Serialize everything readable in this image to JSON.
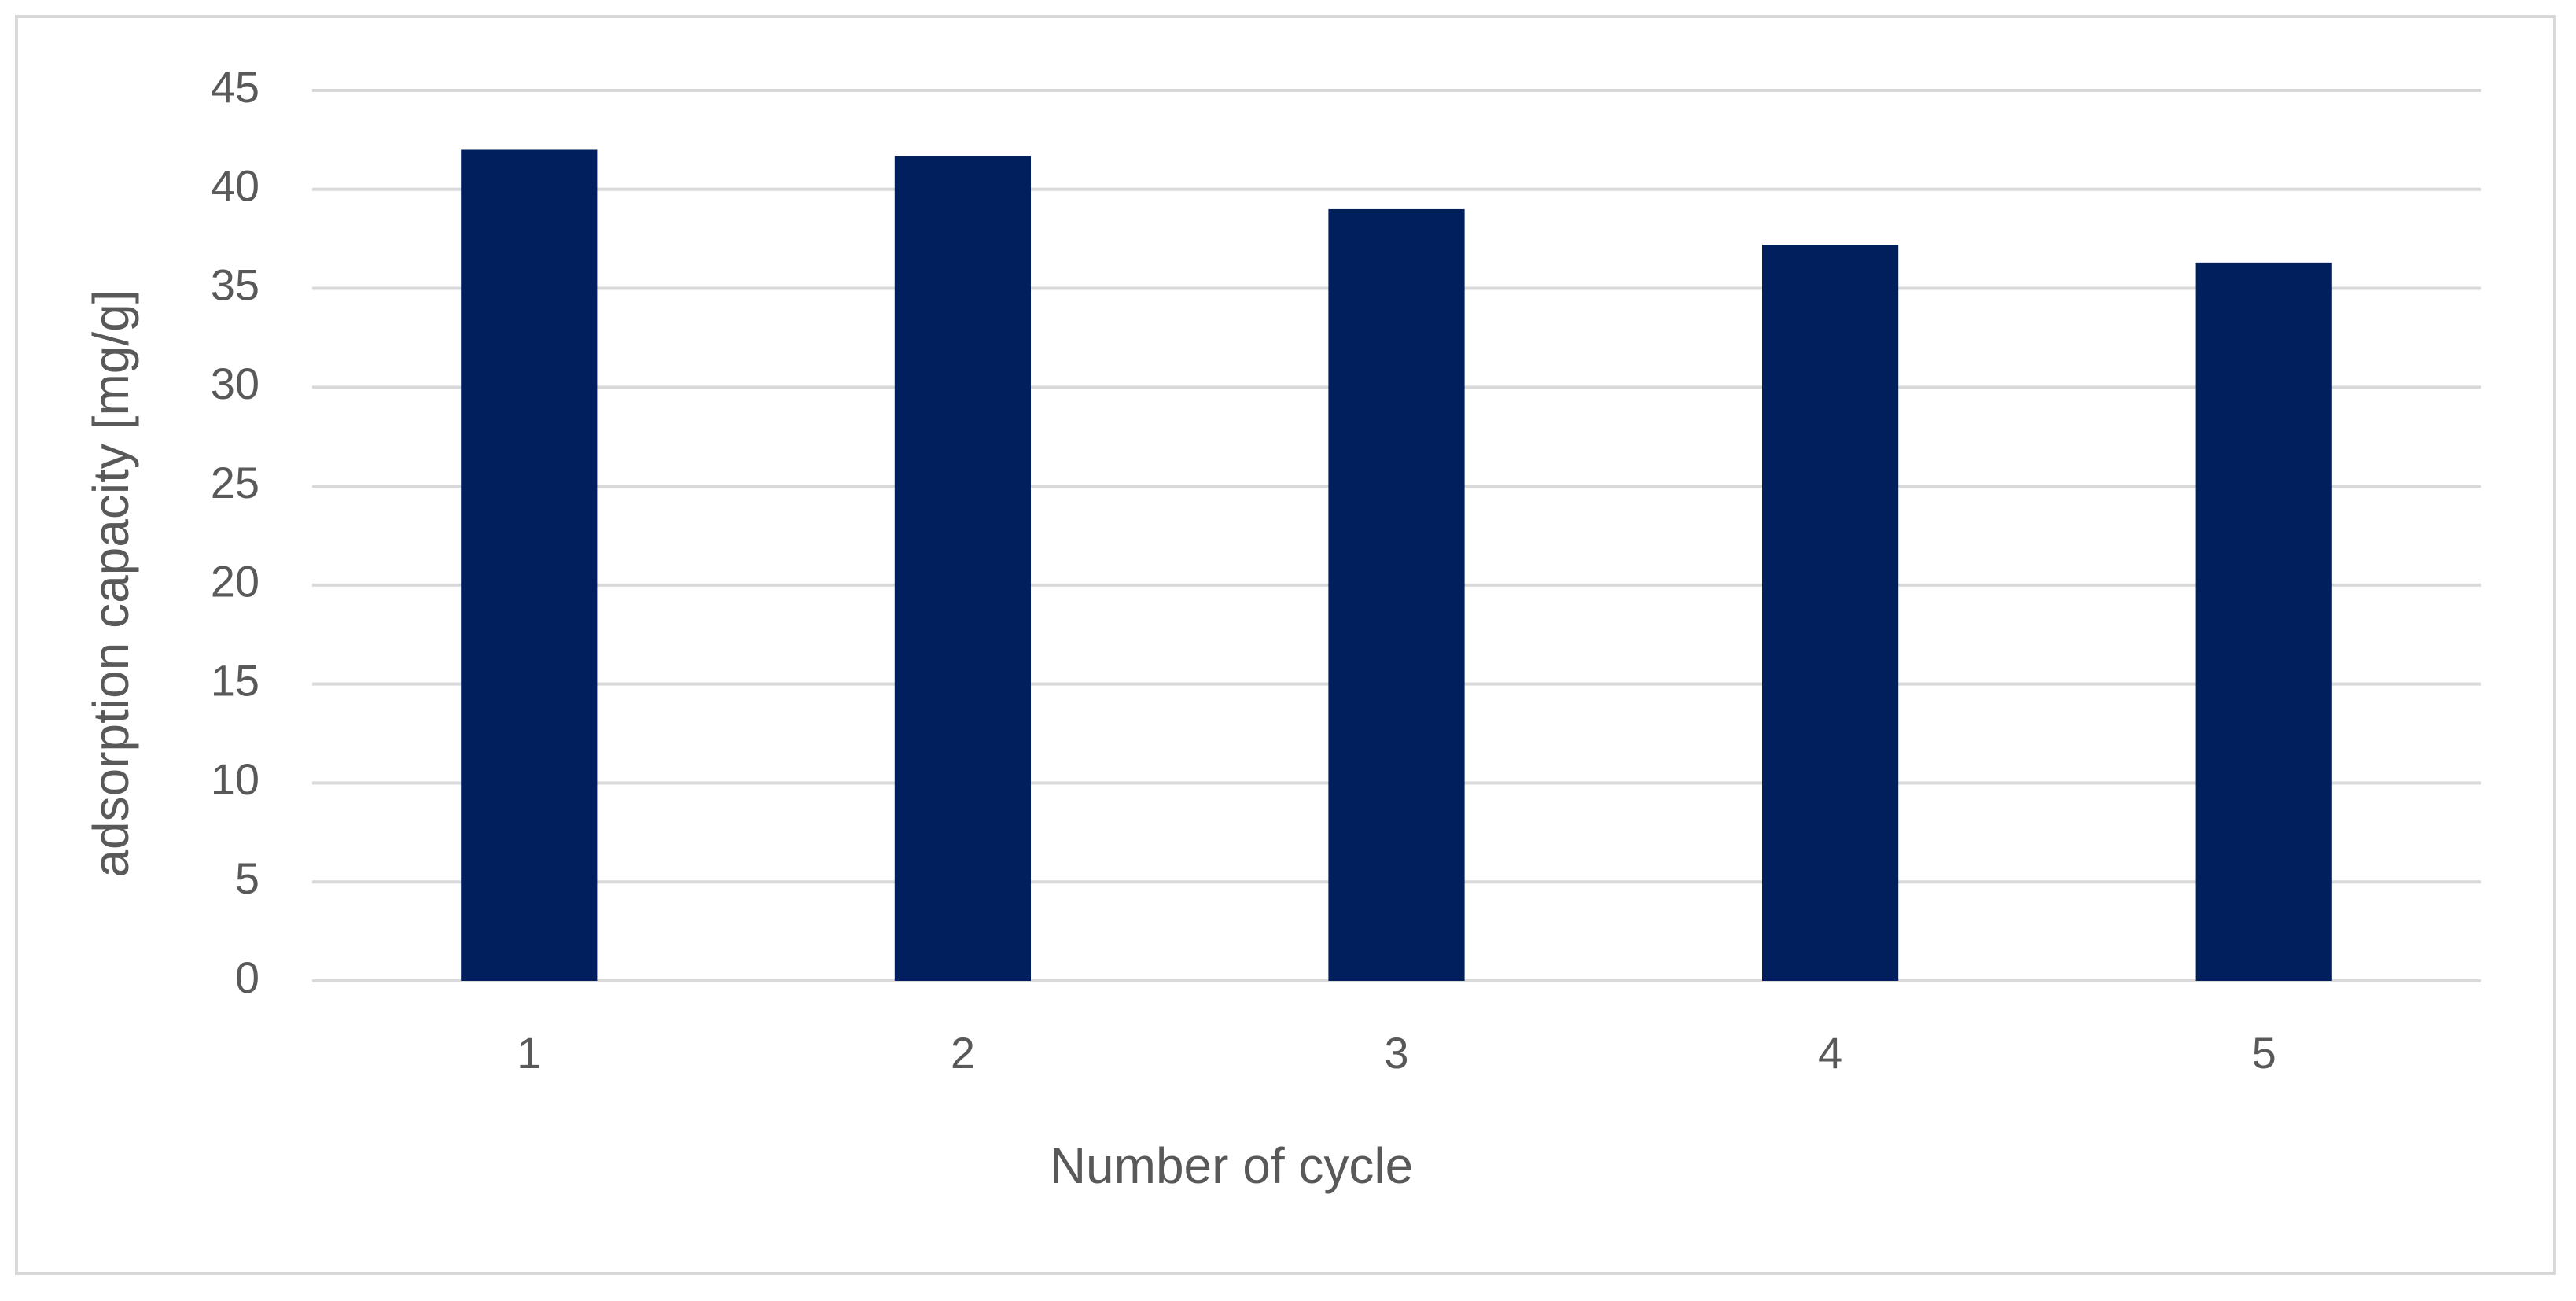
{
  "chart_data": {
    "type": "bar",
    "x_label": "Number of cycle",
    "y_label": "adsorption capacity [mg/g]",
    "categories": [
      "1",
      "2",
      "3",
      "4",
      "5"
    ],
    "values": [
      42,
      41.7,
      39,
      37.2,
      36.3
    ],
    "color": "#001f5c",
    "ylim": [
      0,
      45
    ],
    "yticks": [
      0,
      5,
      10,
      15,
      20,
      25,
      30,
      35,
      40,
      45
    ],
    "grid": true
  }
}
